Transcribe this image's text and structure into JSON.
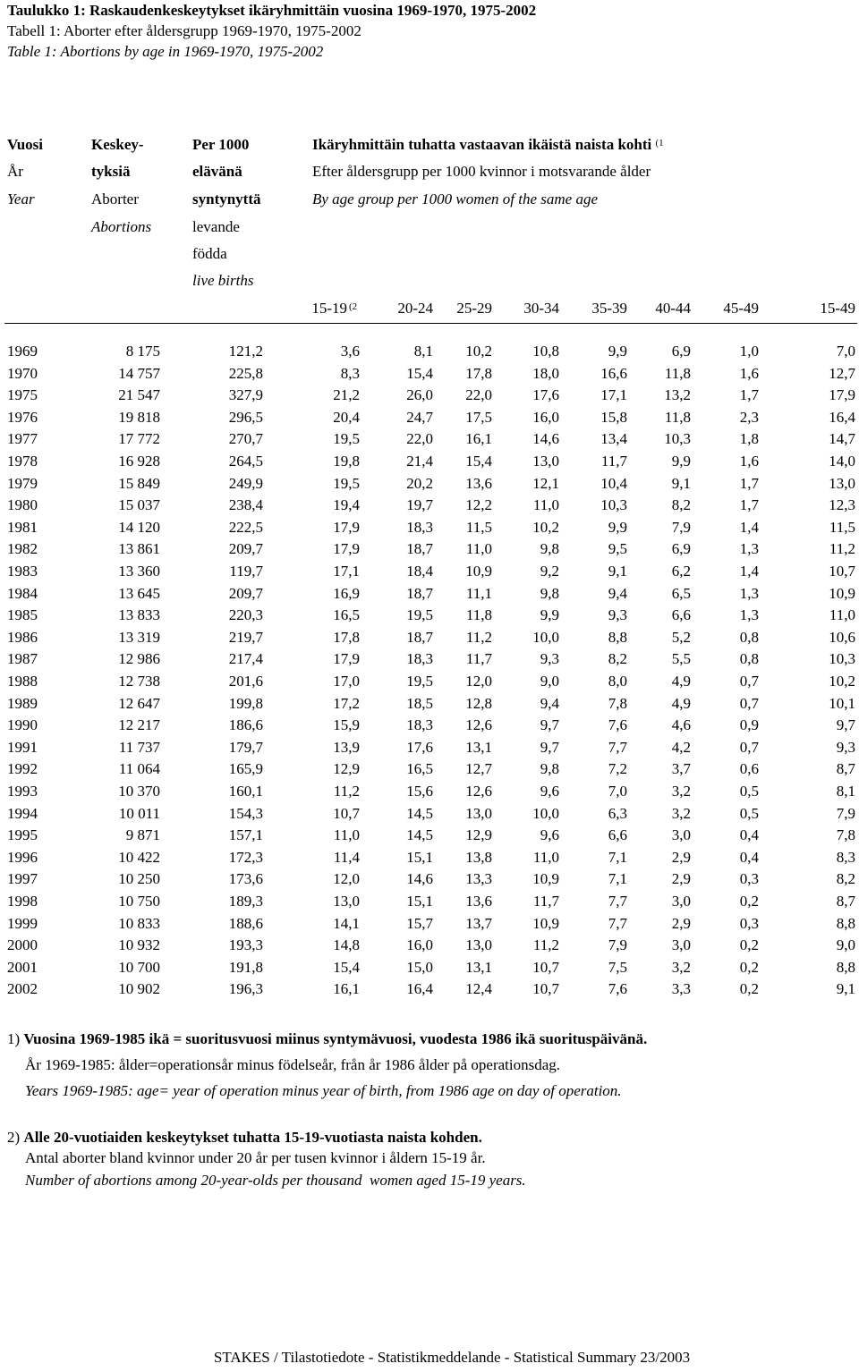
{
  "title": [
    "Taulukko 1: Raskaudenkeskeytykset ikäryhmittäin vuosina 1969-1970, 1975-2002",
    "Tabell 1: Aborter efter åldersgrupp 1969-1970, 1975-2002",
    "Table 1: Abortions by age in 1969-1970, 1975-2002"
  ],
  "header": {
    "year": [
      "Vuosi",
      "År",
      "Year"
    ],
    "abortions": [
      "Keskey-",
      "tyksiä",
      "Aborter",
      "Abortions"
    ],
    "per_1000": [
      "Per 1000",
      "elävänä",
      "syntynyttä",
      "levande",
      "födda",
      "live births"
    ],
    "age_heading": [
      "Ikäryhmittäin tuhatta vastaavan ikäistä naista kohti",
      "Efter åldersgrupp per 1000 kvinnor i motsvarande ålder",
      "By age group per 1000 women of the same age"
    ],
    "age_heading_note": "(1",
    "age_groups": [
      "15-19",
      "20-24",
      "25-29",
      "30-34",
      "35-39",
      "40-44",
      "45-49",
      "15-49"
    ],
    "age_group_note": "(2"
  },
  "table": {
    "rows": [
      [
        "1969",
        "8 175",
        "121,2",
        "3,6",
        "8,1",
        "10,2",
        "10,8",
        "9,9",
        "6,9",
        "1,0",
        "7,0"
      ],
      [
        "1970",
        "14 757",
        "225,8",
        "8,3",
        "15,4",
        "17,8",
        "18,0",
        "16,6",
        "11,8",
        "1,6",
        "12,7"
      ],
      [
        "1975",
        "21 547",
        "327,9",
        "21,2",
        "26,0",
        "22,0",
        "17,6",
        "17,1",
        "13,2",
        "1,7",
        "17,9"
      ],
      [
        "1976",
        "19 818",
        "296,5",
        "20,4",
        "24,7",
        "17,5",
        "16,0",
        "15,8",
        "11,8",
        "2,3",
        "16,4"
      ],
      [
        "1977",
        "17 772",
        "270,7",
        "19,5",
        "22,0",
        "16,1",
        "14,6",
        "13,4",
        "10,3",
        "1,8",
        "14,7"
      ],
      [
        "1978",
        "16 928",
        "264,5",
        "19,8",
        "21,4",
        "15,4",
        "13,0",
        "11,7",
        "9,9",
        "1,6",
        "14,0"
      ],
      [
        "1979",
        "15 849",
        "249,9",
        "19,5",
        "20,2",
        "13,6",
        "12,1",
        "10,4",
        "9,1",
        "1,7",
        "13,0"
      ],
      [
        "1980",
        "15 037",
        "238,4",
        "19,4",
        "19,7",
        "12,2",
        "11,0",
        "10,3",
        "8,2",
        "1,7",
        "12,3"
      ],
      [
        "1981",
        "14 120",
        "222,5",
        "17,9",
        "18,3",
        "11,5",
        "10,2",
        "9,9",
        "7,9",
        "1,4",
        "11,5"
      ],
      [
        "1982",
        "13 861",
        "209,7",
        "17,9",
        "18,7",
        "11,0",
        "9,8",
        "9,5",
        "6,9",
        "1,3",
        "11,2"
      ],
      [
        "1983",
        "13 360",
        "119,7",
        "17,1",
        "18,4",
        "10,9",
        "9,2",
        "9,1",
        "6,2",
        "1,4",
        "10,7"
      ],
      [
        "1984",
        "13 645",
        "209,7",
        "16,9",
        "18,7",
        "11,1",
        "9,8",
        "9,4",
        "6,5",
        "1,3",
        "10,9"
      ],
      [
        "1985",
        "13 833",
        "220,3",
        "16,5",
        "19,5",
        "11,8",
        "9,9",
        "9,3",
        "6,6",
        "1,3",
        "11,0"
      ],
      [
        "1986",
        "13 319",
        "219,7",
        "17,8",
        "18,7",
        "11,2",
        "10,0",
        "8,8",
        "5,2",
        "0,8",
        "10,6"
      ],
      [
        "1987",
        "12 986",
        "217,4",
        "17,9",
        "18,3",
        "11,7",
        "9,3",
        "8,2",
        "5,5",
        "0,8",
        "10,3"
      ],
      [
        "1988",
        "12 738",
        "201,6",
        "17,0",
        "19,5",
        "12,0",
        "9,0",
        "8,0",
        "4,9",
        "0,7",
        "10,2"
      ],
      [
        "1989",
        "12 647",
        "199,8",
        "17,2",
        "18,5",
        "12,8",
        "9,4",
        "7,8",
        "4,9",
        "0,7",
        "10,1"
      ],
      [
        "1990",
        "12 217",
        "186,6",
        "15,9",
        "18,3",
        "12,6",
        "9,7",
        "7,6",
        "4,6",
        "0,9",
        "9,7"
      ],
      [
        "1991",
        "11 737",
        "179,7",
        "13,9",
        "17,6",
        "13,1",
        "9,7",
        "7,7",
        "4,2",
        "0,7",
        "9,3"
      ],
      [
        "1992",
        "11 064",
        "165,9",
        "12,9",
        "16,5",
        "12,7",
        "9,8",
        "7,2",
        "3,7",
        "0,6",
        "8,7"
      ],
      [
        "1993",
        "10 370",
        "160,1",
        "11,2",
        "15,6",
        "12,6",
        "9,6",
        "7,0",
        "3,2",
        "0,5",
        "8,1"
      ],
      [
        "1994",
        "10 011",
        "154,3",
        "10,7",
        "14,5",
        "13,0",
        "10,0",
        "6,3",
        "3,2",
        "0,5",
        "7,9"
      ],
      [
        "1995",
        "9 871",
        "157,1",
        "11,0",
        "14,5",
        "12,9",
        "9,6",
        "6,6",
        "3,0",
        "0,4",
        "7,8"
      ],
      [
        "1996",
        "10 422",
        "172,3",
        "11,4",
        "15,1",
        "13,8",
        "11,0",
        "7,1",
        "2,9",
        "0,4",
        "8,3"
      ],
      [
        "1997",
        "10 250",
        "173,6",
        "12,0",
        "14,6",
        "13,3",
        "10,9",
        "7,1",
        "2,9",
        "0,3",
        "8,2"
      ],
      [
        "1998",
        "10 750",
        "189,3",
        "13,0",
        "15,1",
        "13,6",
        "11,7",
        "7,7",
        "3,0",
        "0,2",
        "8,7"
      ],
      [
        "1999",
        "10 833",
        "188,6",
        "14,1",
        "15,7",
        "13,7",
        "10,9",
        "7,7",
        "2,9",
        "0,3",
        "8,8"
      ],
      [
        "2000",
        "10 932",
        "193,3",
        "14,8",
        "16,0",
        "13,0",
        "11,2",
        "7,9",
        "3,0",
        "0,2",
        "9,0"
      ],
      [
        "2001",
        "10 700",
        "191,8",
        "15,4",
        "15,0",
        "13,1",
        "10,7",
        "7,5",
        "3,2",
        "0,2",
        "8,8"
      ],
      [
        "2002",
        "10 902",
        "196,3",
        "16,1",
        "16,4",
        "12,4",
        "10,7",
        "7,6",
        "3,3",
        "0,2",
        "9,1"
      ]
    ]
  },
  "footnotes": [
    {
      "marker": "1)",
      "lines": [
        "Vuosina 1969-1985 ikä = suoritusvuosi miinus syntymävuosi, vuodesta 1986 ikä suorituspäivänä.",
        "År 1969-1985: ålder=operationsår minus födelseår, från år 1986 ålder på operationsdag.",
        "Years 1969-1985: age= year of operation minus year of birth, from 1986 age on day of operation."
      ]
    },
    {
      "marker": "2)",
      "lines": [
        "Alle 20-vuotiaiden keskeytykset tuhatta 15-19-vuotiasta naista kohden.",
        "Antal aborter bland kvinnor under 20 år per tusen kvinnor i åldern 15-19 år.",
        "Number of abortions among 20-year-olds per thousand  women aged 15-19 years."
      ]
    }
  ],
  "footer": "STAKES / Tilastotiedote - Statistikmeddelande - Statistical Summary 23/2003"
}
